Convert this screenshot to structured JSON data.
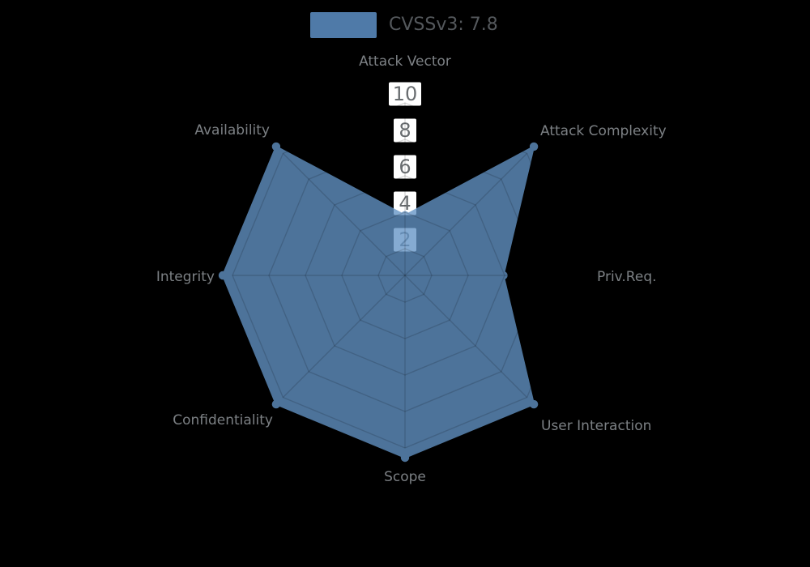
{
  "legend": {
    "label": "CVSSv3: 7.8",
    "swatch_color": "#4f7aa8",
    "text_color": "#54585c"
  },
  "chart_data": {
    "type": "radar",
    "axes": [
      "Attack Vector",
      "Attack Complexity",
      "Priv.Req.",
      "User Interaction",
      "Scope",
      "Confidentiality",
      "Integrity",
      "Availability"
    ],
    "series": [
      {
        "name": "CVSSv3: 7.8",
        "values": [
          3.3,
          10,
          5.4,
          10,
          10,
          10,
          10,
          10
        ]
      }
    ],
    "axis_range": [
      0,
      10
    ],
    "ticks": [
      2,
      4,
      6,
      8,
      10
    ],
    "grid": "on",
    "legend_position": "top-center",
    "colors": {
      "series_fill": "#6394c6",
      "series_fill_opacity": 0.78,
      "grid_line": "rgba(0,0,0,0.15)",
      "tick_box_fill": "#ffffff",
      "tick_text": "#696d70",
      "axis_label": "#7c8084",
      "background": "#000000"
    }
  }
}
